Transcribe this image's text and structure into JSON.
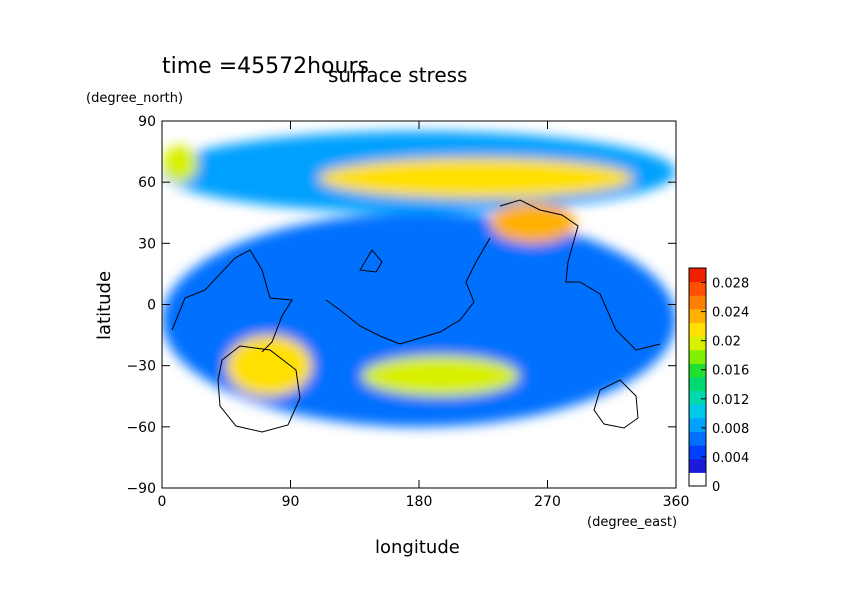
{
  "chart_data": {
    "type": "heatmap",
    "title": "surface stress",
    "time_label": "time =45572hours",
    "xlabel": "longitude",
    "ylabel": "latitude",
    "xunit": "(degree_east)",
    "yunit": "(degree_north)",
    "xlim": [
      0,
      360
    ],
    "ylim": [
      -90,
      90
    ],
    "xticks": [
      "0",
      "90",
      "180",
      "270",
      "360"
    ],
    "yticks": [
      "90",
      "60",
      "30",
      "0",
      "−30",
      "−60",
      "−90"
    ],
    "colorbar": {
      "ticks": [
        "0.028",
        "0.024",
        "0.02",
        "0.016",
        "0.012",
        "0.008",
        "0.004",
        "0"
      ],
      "range": [
        0,
        0.03
      ],
      "colors": [
        "#ffffff",
        "#1a1ad8",
        "#0040ff",
        "#0070ff",
        "#00a0ff",
        "#00c8e8",
        "#00d8b0",
        "#00d870",
        "#20e030",
        "#80f000",
        "#d8f000",
        "#ffe000",
        "#ffb000",
        "#ff8000",
        "#ff5000",
        "#ee2000"
      ]
    },
    "features": [
      {
        "name": "northern high-latitude band",
        "lon": [
          0,
          360
        ],
        "lat": [
          45,
          85
        ],
        "value": 0.008
      },
      {
        "name": "band near 63N",
        "lon": [
          110,
          330
        ],
        "lat": [
          52,
          72
        ],
        "value": 0.022
      },
      {
        "name": "band near 70N, west",
        "lon": [
          0,
          25
        ],
        "lat": [
          60,
          78
        ],
        "value": 0.02
      },
      {
        "name": "spot near 40N, 260E",
        "lon": [
          230,
          290
        ],
        "lat": [
          30,
          50
        ],
        "value": 0.024
      },
      {
        "name": "ring near 30S, 75E",
        "lon": [
          45,
          105
        ],
        "lat": [
          -45,
          -15
        ],
        "value": 0.022
      },
      {
        "name": "band near 35S, 150-240E",
        "lon": [
          140,
          250
        ],
        "lat": [
          -45,
          -25
        ],
        "value": 0.02
      },
      {
        "name": "equatorial field",
        "lon": [
          0,
          360
        ],
        "lat": [
          -60,
          45
        ],
        "value": 0.006
      }
    ]
  }
}
